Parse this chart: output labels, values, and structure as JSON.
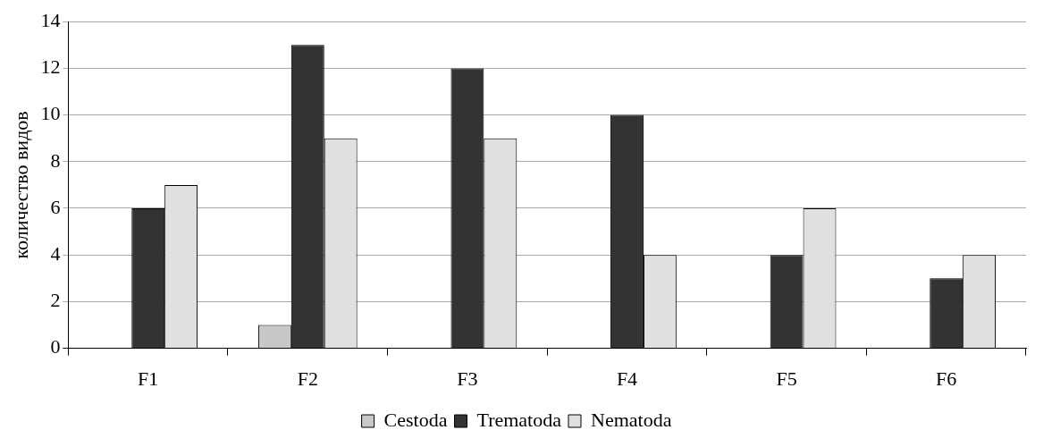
{
  "chart_data": {
    "type": "bar",
    "ylabel": "количество видов",
    "categories": [
      "F1",
      "F2",
      "F3",
      "F4",
      "F5",
      "F6"
    ],
    "series": [
      {
        "name": "Cestoda",
        "color": "#c8c8c8",
        "values": [
          0,
          1,
          0,
          0,
          0,
          0
        ]
      },
      {
        "name": "Trematoda",
        "color": "#333333",
        "values": [
          6,
          13,
          12,
          10,
          4,
          3
        ]
      },
      {
        "name": "Nematoda",
        "color": "#e0e0e0",
        "values": [
          7,
          9,
          9,
          4,
          6,
          4
        ]
      }
    ],
    "ylim": [
      0,
      14
    ],
    "yticks": [
      0,
      2,
      4,
      6,
      8,
      10,
      12,
      14
    ],
    "grid": "y",
    "legend": "bottom"
  }
}
